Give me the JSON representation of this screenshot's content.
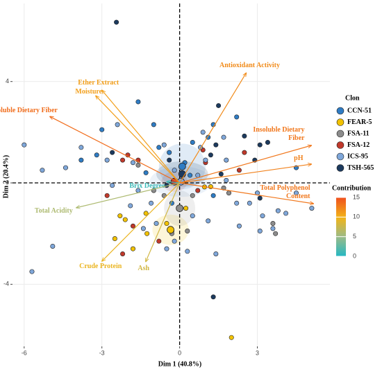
{
  "chart_data": {
    "type": "scatter",
    "x_label": "Dim 1 (40.8%)",
    "y_label": "Dim 2 (20.4%)",
    "xlim": [
      -6.45,
      5.8
    ],
    "ylim": [
      -6.45,
      7.08
    ],
    "xticks": [
      -6,
      -3,
      0,
      3
    ],
    "yticks": [
      -4,
      0,
      4
    ],
    "grid": true,
    "legend_title": "Clon",
    "series": [
      {
        "name": "CCN-51",
        "color": "#2f7cc4",
        "centroid": [
          0.1,
          0.65
        ],
        "ellipse": [
          0.9,
          0.9
        ],
        "x": [
          -1.6,
          -3.0,
          1.3,
          1.1,
          -1.0,
          0.5,
          -0.4,
          -0.8,
          -1.3,
          0.2,
          2.2,
          4.5,
          1.3,
          -0.3,
          -3.2,
          -3.8,
          0.4
        ],
        "y": [
          3.2,
          2.1,
          2.3,
          1.8,
          2.3,
          1.6,
          1.2,
          1.4,
          0.4,
          0.8,
          2.6,
          0.6,
          -0.5,
          -0.8,
          1.1,
          0.9,
          0.3
        ]
      },
      {
        "name": "FEAR-5",
        "color": "#f2c200",
        "centroid": [
          -0.35,
          -1.85
        ],
        "ellipse": [
          0.7,
          0.6
        ],
        "x": [
          2.0,
          -2.5,
          -2.1,
          -1.3,
          -1.26,
          -0.5,
          0.96,
          1.2,
          0.24,
          -2.3,
          -0.3,
          -1.8
        ],
        "y": [
          -6.1,
          -2.2,
          -1.45,
          -1.2,
          -2.0,
          -1.6,
          -0.16,
          -0.15,
          -1.0,
          -1.3,
          -1.9,
          -2.6
        ]
      },
      {
        "name": "FSA-11",
        "color": "#8c8c8c",
        "centroid": [
          0.0,
          -1.0
        ],
        "ellipse": [
          0.6,
          0.7
        ],
        "x": [
          -1.0,
          1.7,
          -0.3,
          3.7,
          -1.6,
          0.5,
          1.9,
          -0.6,
          3.6,
          0.3
        ],
        "y": [
          -0.3,
          -0.2,
          -2.0,
          -2.0,
          0.7,
          -0.5,
          -0.4,
          -0.5,
          -1.6,
          -1.9
        ]
      },
      {
        "name": "FSA-12",
        "color": "#c0392b",
        "centroid": [
          -0.2,
          0.05
        ],
        "ellipse": [
          0.5,
          0.4
        ],
        "x": [
          -2.2,
          -2.0,
          -1.6,
          -2.8,
          2.5,
          2.3,
          -1.8,
          -2.2,
          1.0,
          0.7,
          -0.8,
          0.9
        ],
        "y": [
          0.9,
          1.1,
          0.9,
          -0.5,
          1.2,
          0.5,
          -1.7,
          -2.8,
          0.8,
          -0.3,
          -2.3,
          1.3
        ]
      },
      {
        "name": "ICS-95",
        "color": "#7fa7da",
        "centroid": [
          0.05,
          0.05
        ],
        "ellipse": [
          1.2,
          0.6
        ],
        "x": [
          -5.7,
          -4.9,
          -6.0,
          -5.3,
          -4.4,
          -3.8,
          -2.8,
          2.3,
          3.2,
          3.1,
          3.6,
          1.4,
          -0.2,
          0.3,
          -0.5,
          1.1,
          0.5,
          -0.9,
          -1.4,
          4.1,
          3.8,
          2.7,
          1.7,
          1.0,
          -0.2,
          0.7,
          1.8,
          -1.8,
          -2.4,
          1.8,
          2.2,
          -0.6,
          0.9,
          -1.1,
          -1.6,
          4.5,
          5.1,
          3.0,
          0.8,
          -2.6,
          -1.9
        ],
        "y": [
          -3.5,
          -2.5,
          1.5,
          0.5,
          0.6,
          1.4,
          0.9,
          -1.7,
          -1.3,
          -1.9,
          -1.8,
          -2.8,
          -2.3,
          -2.7,
          -2.6,
          -1.5,
          -1.3,
          -1.6,
          -1.8,
          -1.2,
          -1.1,
          -0.8,
          1.8,
          0.9,
          0.5,
          0.3,
          0.9,
          0.8,
          2.3,
          0.1,
          -0.8,
          1.5,
          2.0,
          -0.8,
          -0.3,
          -0.4,
          -1.0,
          -0.4,
          1.4,
          -0.1,
          -0.9
        ]
      },
      {
        "name": "TSH-565",
        "color": "#1c3a5e",
        "centroid": [
          0.1,
          0.35
        ],
        "ellipse": [
          1.0,
          0.5
        ],
        "x": [
          -2.44,
          2.5,
          1.5,
          3.1,
          3.4,
          2.9,
          -0.4,
          1.4,
          3.1,
          1.2,
          -2.6,
          1.6,
          -0.5,
          1.3
        ],
        "y": [
          6.34,
          1.85,
          3.05,
          1.5,
          1.6,
          0.9,
          0.9,
          1.5,
          -0.6,
          1.1,
          1.2,
          0.35,
          -0.1,
          -4.5
        ]
      }
    ],
    "contribution_title": "Contribution",
    "contribution_lim": [
      0,
      15
    ],
    "contribution_ticks": [
      0,
      5,
      10,
      15
    ],
    "arrows": [
      {
        "label": [
          "Antioxidant Activity"
        ],
        "x": 2.57,
        "y": 4.34,
        "contribution": 12
      },
      {
        "label": [
          "Ether Extract"
        ],
        "x": -3.0,
        "y": 3.66,
        "contribution": 11
      },
      {
        "label": [
          "Moisture"
        ],
        "x": -3.24,
        "y": 3.44,
        "contribution": 11
      },
      {
        "label": [
          "Soluble Dietary Fiber"
        ],
        "x": -5.01,
        "y": 2.62,
        "contribution": 13.5
      },
      {
        "label": [
          "Insoluble Dietary",
          "Fiber"
        ],
        "x": 5.09,
        "y": 1.48,
        "contribution": 13
      },
      {
        "label": [
          "pH"
        ],
        "x": 5.09,
        "y": 0.74,
        "contribution": 12.5
      },
      {
        "label": [
          "Total Polyphenol",
          "Content"
        ],
        "x": 5.17,
        "y": -0.82,
        "contribution": 13
      },
      {
        "label": [
          "Brix Degree"
        ],
        "x": -0.5,
        "y": 0.05,
        "contribution": 1
      },
      {
        "label": [
          "Total Acidity"
        ],
        "x": -3.99,
        "y": -0.98,
        "contribution": 6
      },
      {
        "label": [
          "Crude Protein"
        ],
        "x": -3.0,
        "y": -3.09,
        "contribution": 9.5
      },
      {
        "label": [
          "Ash"
        ],
        "x": -1.31,
        "y": -3.11,
        "contribution": 8
      }
    ]
  }
}
